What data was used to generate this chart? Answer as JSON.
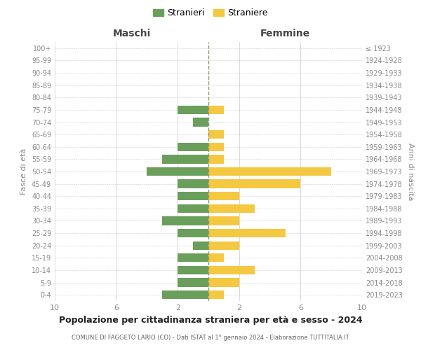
{
  "age_groups": [
    "100+",
    "95-99",
    "90-94",
    "85-89",
    "80-84",
    "75-79",
    "70-74",
    "65-69",
    "60-64",
    "55-59",
    "50-54",
    "45-49",
    "40-44",
    "35-39",
    "30-34",
    "25-29",
    "20-24",
    "15-19",
    "10-14",
    "5-9",
    "0-4"
  ],
  "birth_years": [
    "≤ 1923",
    "1924-1928",
    "1929-1933",
    "1934-1938",
    "1939-1943",
    "1944-1948",
    "1949-1953",
    "1954-1958",
    "1959-1963",
    "1964-1968",
    "1969-1973",
    "1974-1978",
    "1979-1983",
    "1984-1988",
    "1989-1993",
    "1994-1998",
    "1999-2003",
    "2004-2008",
    "2009-2013",
    "2014-2018",
    "2019-2023"
  ],
  "males": [
    0,
    0,
    0,
    0,
    0,
    2,
    1,
    0,
    2,
    3,
    4,
    2,
    2,
    2,
    3,
    2,
    1,
    2,
    2,
    2,
    3
  ],
  "females": [
    0,
    0,
    0,
    0,
    0,
    1,
    0,
    1,
    1,
    1,
    8,
    6,
    2,
    3,
    2,
    5,
    2,
    1,
    3,
    2,
    1
  ],
  "male_color": "#6a9e5b",
  "female_color": "#f5c842",
  "title": "Popolazione per cittadinanza straniera per età e sesso - 2024",
  "subtitle": "COMUNE DI FAGGETO LARIO (CO) - Dati ISTAT al 1° gennaio 2024 - Elaborazione TUTTITALIA.IT",
  "xlabel_left": "Maschi",
  "xlabel_right": "Femmine",
  "ylabel_left": "Fasce di età",
  "ylabel_right": "Anni di nascita",
  "legend_males": "Stranieri",
  "legend_females": "Straniere",
  "xlim": 10,
  "background_color": "#ffffff",
  "grid_color": "#cccccc"
}
